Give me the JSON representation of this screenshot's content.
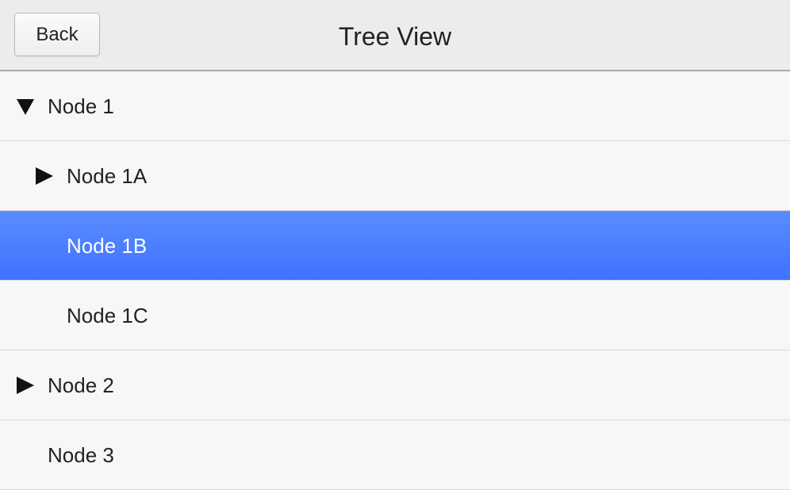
{
  "header": {
    "back_label": "Back",
    "title": "Tree View"
  },
  "tree": {
    "nodes": [
      {
        "label": "Node 1",
        "level": 0,
        "toggle": "expanded",
        "icon": "triangle-down-icon"
      },
      {
        "label": "Node 1A",
        "level": 1,
        "toggle": "collapsed",
        "icon": "triangle-right-icon"
      },
      {
        "label": "Node 1B",
        "level": 1,
        "toggle": "none",
        "selected": true
      },
      {
        "label": "Node 1C",
        "level": 1,
        "toggle": "none"
      },
      {
        "label": "Node 2",
        "level": 0,
        "toggle": "collapsed",
        "icon": "triangle-right-icon"
      },
      {
        "label": "Node 3",
        "level": 0,
        "toggle": "none"
      }
    ]
  },
  "colors": {
    "header_bg": "#ececec",
    "row_bg": "#f7f7f7",
    "selected_bg": "#4a7dff",
    "selected_text": "#ffffff",
    "divider": "#dadada"
  }
}
